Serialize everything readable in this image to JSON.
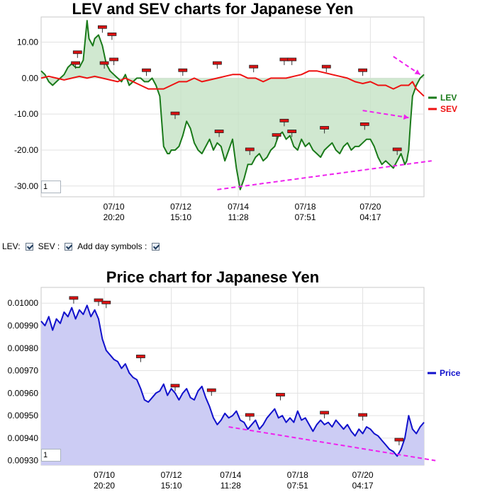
{
  "controls": {
    "lev_label": "LEV:",
    "sev_label": "SEV :",
    "day_symbols_label": "Add day symbols :",
    "lev_checked": true,
    "sev_checked": true,
    "day_symbols_checked": true
  },
  "chart_data": [
    {
      "type": "line",
      "title": "LEV and SEV charts for Japanese Yen",
      "ylim": [
        -33,
        17
      ],
      "y_ticks": [
        "10.00",
        "0.00",
        "-10.00",
        "-20.00",
        "-30.00"
      ],
      "y_tick_values": [
        10,
        0,
        -10,
        -20,
        -30
      ],
      "x_tick_labels": [
        [
          "07/10",
          "20:20"
        ],
        [
          "07/12",
          "15:10"
        ],
        [
          "07/14",
          "11:28"
        ],
        [
          "07/18",
          "07:51"
        ],
        [
          "07/20",
          "04:17"
        ]
      ],
      "x_tick_positions": [
        0.19,
        0.365,
        0.515,
        0.69,
        0.86
      ],
      "zoom_value": "1",
      "colors": {
        "LEV": "#1a7a1a",
        "SEV": "#ee1111",
        "fill": "#c4e2c4",
        "annotation": "#ee22ee"
      },
      "series": [
        {
          "name": "LEV",
          "x": [
            0,
            0.01,
            0.02,
            0.03,
            0.04,
            0.05,
            0.06,
            0.07,
            0.08,
            0.09,
            0.1,
            0.11,
            0.12,
            0.125,
            0.13,
            0.135,
            0.14,
            0.15,
            0.16,
            0.17,
            0.18,
            0.19,
            0.2,
            0.21,
            0.22,
            0.23,
            0.24,
            0.25,
            0.26,
            0.27,
            0.28,
            0.29,
            0.3,
            0.31,
            0.32,
            0.33,
            0.335,
            0.34,
            0.35,
            0.36,
            0.37,
            0.38,
            0.39,
            0.4,
            0.41,
            0.42,
            0.43,
            0.44,
            0.45,
            0.46,
            0.47,
            0.48,
            0.49,
            0.5,
            0.51,
            0.52,
            0.53,
            0.54,
            0.55,
            0.56,
            0.57,
            0.58,
            0.59,
            0.6,
            0.61,
            0.62,
            0.63,
            0.64,
            0.65,
            0.66,
            0.67,
            0.68,
            0.69,
            0.7,
            0.71,
            0.72,
            0.73,
            0.74,
            0.75,
            0.76,
            0.77,
            0.78,
            0.79,
            0.8,
            0.81,
            0.82,
            0.83,
            0.84,
            0.85,
            0.86,
            0.87,
            0.88,
            0.89,
            0.9,
            0.91,
            0.92,
            0.93,
            0.94,
            0.95,
            0.955,
            0.96,
            0.965,
            0.97,
            0.98,
            0.99,
            1.0
          ],
          "values": [
            2,
            1,
            -1,
            -2,
            -1,
            0,
            1,
            3,
            4,
            3,
            3,
            5,
            16,
            11,
            10,
            9,
            11,
            12,
            9,
            4,
            2,
            1,
            0,
            -1,
            1,
            -2,
            -1,
            0,
            0,
            -1,
            -1,
            0,
            -2,
            -5,
            -19,
            -21,
            -21,
            -20,
            -20,
            -19,
            -16,
            -12,
            -14,
            -18,
            -20,
            -21,
            -19,
            -17,
            -20,
            -18,
            -19,
            -23,
            -20,
            -17,
            -25,
            -31,
            -28,
            -24,
            -24,
            -22,
            -21,
            -23,
            -22,
            -20,
            -19,
            -16,
            -15,
            -17,
            -16,
            -19,
            -20,
            -17,
            -19,
            -18,
            -20,
            -21,
            -22,
            -20,
            -19,
            -18,
            -20,
            -21,
            -19,
            -18,
            -20,
            -19,
            -19,
            -18,
            -17,
            -17,
            -19,
            -22,
            -24,
            -23,
            -24,
            -25,
            -23,
            -21,
            -24,
            -23,
            -20,
            -12,
            -5,
            -2,
            0,
            1
          ]
        },
        {
          "name": "SEV",
          "x": [
            0,
            0.02,
            0.04,
            0.06,
            0.08,
            0.1,
            0.12,
            0.14,
            0.16,
            0.18,
            0.2,
            0.22,
            0.24,
            0.26,
            0.28,
            0.3,
            0.32,
            0.34,
            0.36,
            0.38,
            0.4,
            0.42,
            0.44,
            0.46,
            0.48,
            0.5,
            0.52,
            0.54,
            0.56,
            0.58,
            0.6,
            0.62,
            0.64,
            0.66,
            0.68,
            0.7,
            0.72,
            0.74,
            0.76,
            0.78,
            0.8,
            0.82,
            0.84,
            0.86,
            0.88,
            0.9,
            0.92,
            0.94,
            0.96,
            0.97,
            0.98,
            0.99,
            1.0
          ],
          "values": [
            0,
            0.5,
            0,
            -0.5,
            0,
            0.5,
            0,
            0.5,
            0,
            -0.5,
            -1,
            0,
            -1,
            -2,
            -3,
            -3,
            -3,
            -2,
            -1,
            -1,
            0,
            -1,
            -0.5,
            0,
            0.5,
            1,
            1,
            0,
            0,
            -1,
            0,
            0,
            0,
            0.5,
            1,
            2,
            2,
            1.5,
            1,
            0.5,
            0,
            -1,
            -1.5,
            -1,
            -2,
            -2,
            -3,
            -2,
            -2,
            -1,
            -3,
            -4,
            -5
          ]
        }
      ],
      "annotations": [
        {
          "type": "trend",
          "from": [
            0.46,
            -31
          ],
          "to": [
            1.02,
            -23
          ]
        },
        {
          "type": "arrow",
          "from": [
            0.84,
            -9
          ],
          "to": [
            0.96,
            -11
          ]
        },
        {
          "type": "arrow",
          "from": [
            0.92,
            6
          ],
          "to": [
            0.99,
            1
          ]
        }
      ],
      "day_symbols": [
        {
          "x": 0.09,
          "y": 4
        },
        {
          "x": 0.095,
          "y": 7
        },
        {
          "x": 0.16,
          "y": 14
        },
        {
          "x": 0.185,
          "y": 12
        },
        {
          "x": 0.165,
          "y": 4
        },
        {
          "x": 0.19,
          "y": 5
        },
        {
          "x": 0.275,
          "y": 2
        },
        {
          "x": 0.35,
          "y": -10
        },
        {
          "x": 0.37,
          "y": 2
        },
        {
          "x": 0.465,
          "y": -15
        },
        {
          "x": 0.46,
          "y": 4
        },
        {
          "x": 0.545,
          "y": -20
        },
        {
          "x": 0.555,
          "y": 3
        },
        {
          "x": 0.615,
          "y": -16
        },
        {
          "x": 0.635,
          "y": -12
        },
        {
          "x": 0.655,
          "y": -15
        },
        {
          "x": 0.635,
          "y": 5
        },
        {
          "x": 0.655,
          "y": 5
        },
        {
          "x": 0.74,
          "y": -14
        },
        {
          "x": 0.745,
          "y": 3
        },
        {
          "x": 0.845,
          "y": -13
        },
        {
          "x": 0.84,
          "y": 2
        },
        {
          "x": 0.93,
          "y": -20
        }
      ]
    },
    {
      "type": "area",
      "title": "Price chart for Japanese Yen",
      "ylim": [
        0.00928,
        0.01007
      ],
      "y_ticks": [
        "0.01000",
        "0.00990",
        "0.00980",
        "0.00970",
        "0.00960",
        "0.00950",
        "0.00940",
        "0.00930"
      ],
      "y_tick_values": [
        0.01,
        0.0099,
        0.0098,
        0.0097,
        0.0096,
        0.0095,
        0.0094,
        0.0093
      ],
      "x_tick_labels": [
        [
          "07/10",
          "20:20"
        ],
        [
          "07/12",
          "15:10"
        ],
        [
          "07/14",
          "11:28"
        ],
        [
          "07/18",
          "07:51"
        ],
        [
          "07/20",
          "04:17"
        ]
      ],
      "x_tick_positions": [
        0.165,
        0.34,
        0.495,
        0.67,
        0.84
      ],
      "zoom_value": "1",
      "colors": {
        "Price": "#1111cc",
        "fill": "#ccccf4",
        "annotation": "#ee22ee"
      },
      "series": [
        {
          "name": "Price",
          "x": [
            0,
            0.01,
            0.02,
            0.03,
            0.04,
            0.05,
            0.06,
            0.07,
            0.08,
            0.09,
            0.1,
            0.11,
            0.12,
            0.13,
            0.14,
            0.15,
            0.16,
            0.17,
            0.18,
            0.19,
            0.2,
            0.21,
            0.22,
            0.23,
            0.24,
            0.25,
            0.26,
            0.27,
            0.28,
            0.29,
            0.3,
            0.31,
            0.32,
            0.33,
            0.34,
            0.35,
            0.36,
            0.37,
            0.38,
            0.39,
            0.4,
            0.41,
            0.42,
            0.43,
            0.44,
            0.45,
            0.46,
            0.47,
            0.48,
            0.49,
            0.5,
            0.51,
            0.52,
            0.53,
            0.54,
            0.55,
            0.56,
            0.57,
            0.58,
            0.59,
            0.6,
            0.61,
            0.62,
            0.63,
            0.64,
            0.65,
            0.66,
            0.67,
            0.68,
            0.69,
            0.7,
            0.71,
            0.72,
            0.73,
            0.74,
            0.75,
            0.76,
            0.77,
            0.78,
            0.79,
            0.8,
            0.81,
            0.82,
            0.83,
            0.84,
            0.85,
            0.86,
            0.87,
            0.88,
            0.89,
            0.9,
            0.91,
            0.92,
            0.93,
            0.94,
            0.95,
            0.96,
            0.97,
            0.98,
            0.99,
            1.0
          ],
          "values": [
            0.00992,
            0.0099,
            0.00994,
            0.00988,
            0.00993,
            0.00991,
            0.00996,
            0.00994,
            0.00998,
            0.00993,
            0.00997,
            0.00995,
            0.00999,
            0.00994,
            0.00997,
            0.00993,
            0.00984,
            0.00979,
            0.00977,
            0.00975,
            0.00974,
            0.00971,
            0.00973,
            0.00969,
            0.00967,
            0.00966,
            0.00962,
            0.00957,
            0.00956,
            0.00958,
            0.0096,
            0.00961,
            0.00964,
            0.00959,
            0.00962,
            0.0096,
            0.00957,
            0.0096,
            0.00962,
            0.00958,
            0.00957,
            0.00961,
            0.00963,
            0.00958,
            0.00954,
            0.00949,
            0.00946,
            0.00948,
            0.00951,
            0.00949,
            0.0095,
            0.00952,
            0.00948,
            0.00947,
            0.00944,
            0.00946,
            0.00948,
            0.00944,
            0.00946,
            0.00949,
            0.00951,
            0.00953,
            0.00949,
            0.0095,
            0.00947,
            0.00949,
            0.00947,
            0.00952,
            0.00948,
            0.00949,
            0.00946,
            0.00943,
            0.00946,
            0.00948,
            0.00946,
            0.00947,
            0.00945,
            0.00948,
            0.00946,
            0.00944,
            0.00946,
            0.00943,
            0.00941,
            0.00944,
            0.00942,
            0.00945,
            0.00944,
            0.00942,
            0.00941,
            0.00939,
            0.00937,
            0.00935,
            0.00934,
            0.00932,
            0.00935,
            0.0094,
            0.0095,
            0.00944,
            0.00942,
            0.00945,
            0.00947
          ]
        }
      ],
      "annotations": [
        {
          "type": "trend",
          "from": [
            0.49,
            0.00945
          ],
          "to": [
            1.03,
            0.0093
          ]
        }
      ],
      "day_symbols": [
        {
          "x": 0.085,
          "y": 0.01002
        },
        {
          "x": 0.15,
          "y": 0.01001
        },
        {
          "x": 0.17,
          "y": 0.01
        },
        {
          "x": 0.26,
          "y": 0.00976
        },
        {
          "x": 0.35,
          "y": 0.00963
        },
        {
          "x": 0.445,
          "y": 0.00961
        },
        {
          "x": 0.545,
          "y": 0.0095
        },
        {
          "x": 0.625,
          "y": 0.00959
        },
        {
          "x": 0.74,
          "y": 0.00951
        },
        {
          "x": 0.84,
          "y": 0.0095
        },
        {
          "x": 0.935,
          "y": 0.00939
        }
      ]
    }
  ]
}
